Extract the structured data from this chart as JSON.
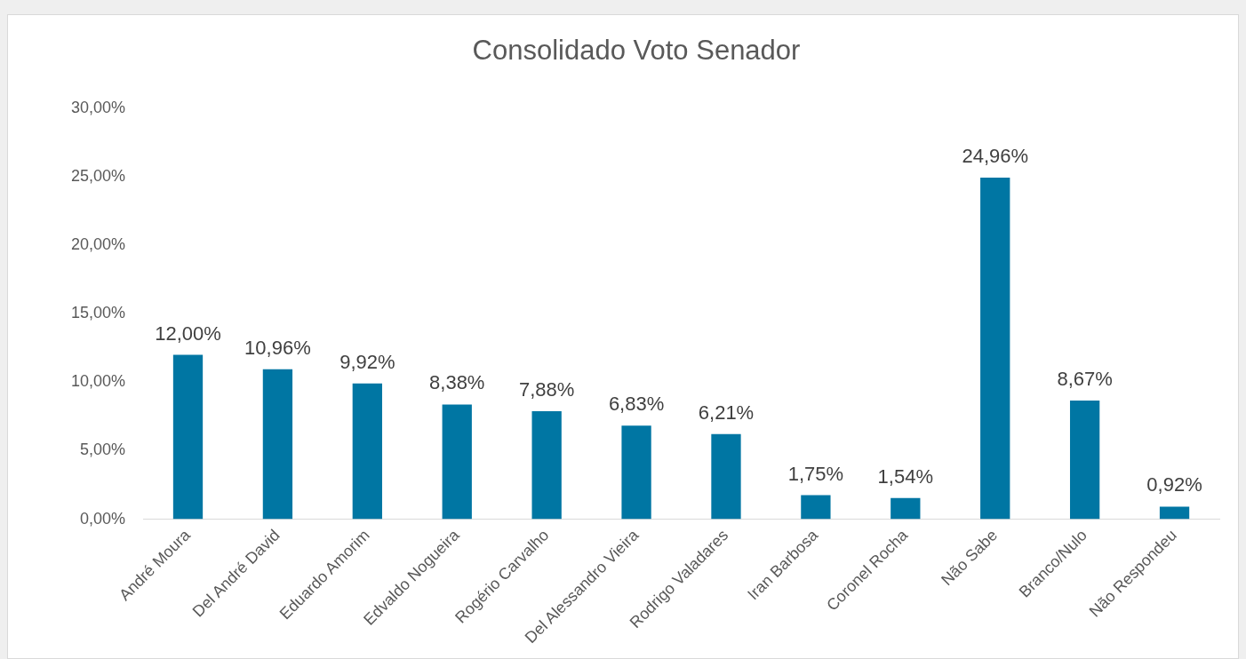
{
  "chart_data": {
    "type": "bar",
    "title": "Consolidado Voto Senador",
    "categories": [
      "André Moura",
      "Del André David",
      "Eduardo Amorim",
      "Edvaldo Nogueira",
      "Rogério Carvalho",
      "Del Alessandro Vieira",
      "Rodrigo Valadares",
      "Iran Barbosa",
      "Coronel Rocha",
      "Não Sabe",
      "Branco/Nulo",
      "Não Respondeu"
    ],
    "values": [
      12.0,
      10.96,
      9.92,
      8.38,
      7.88,
      6.83,
      6.21,
      1.75,
      1.54,
      24.96,
      8.67,
      0.92
    ],
    "value_labels": [
      "12,00%",
      "10,96%",
      "9,92%",
      "8,38%",
      "7,88%",
      "6,83%",
      "6,21%",
      "1,75%",
      "1,54%",
      "24,96%",
      "8,67%",
      "0,92%"
    ],
    "color": "#0076a3",
    "ylim": [
      0,
      30
    ],
    "yticks": [
      {
        "value": 0,
        "label": "0,00%"
      },
      {
        "value": 5,
        "label": "5,00%"
      },
      {
        "value": 10,
        "label": "10,00%"
      },
      {
        "value": 15,
        "label": "15,00%"
      },
      {
        "value": 20,
        "label": "20,00%"
      },
      {
        "value": 25,
        "label": "25,00%"
      },
      {
        "value": 30,
        "label": "30,00%"
      }
    ],
    "grid": false,
    "legend": false
  }
}
